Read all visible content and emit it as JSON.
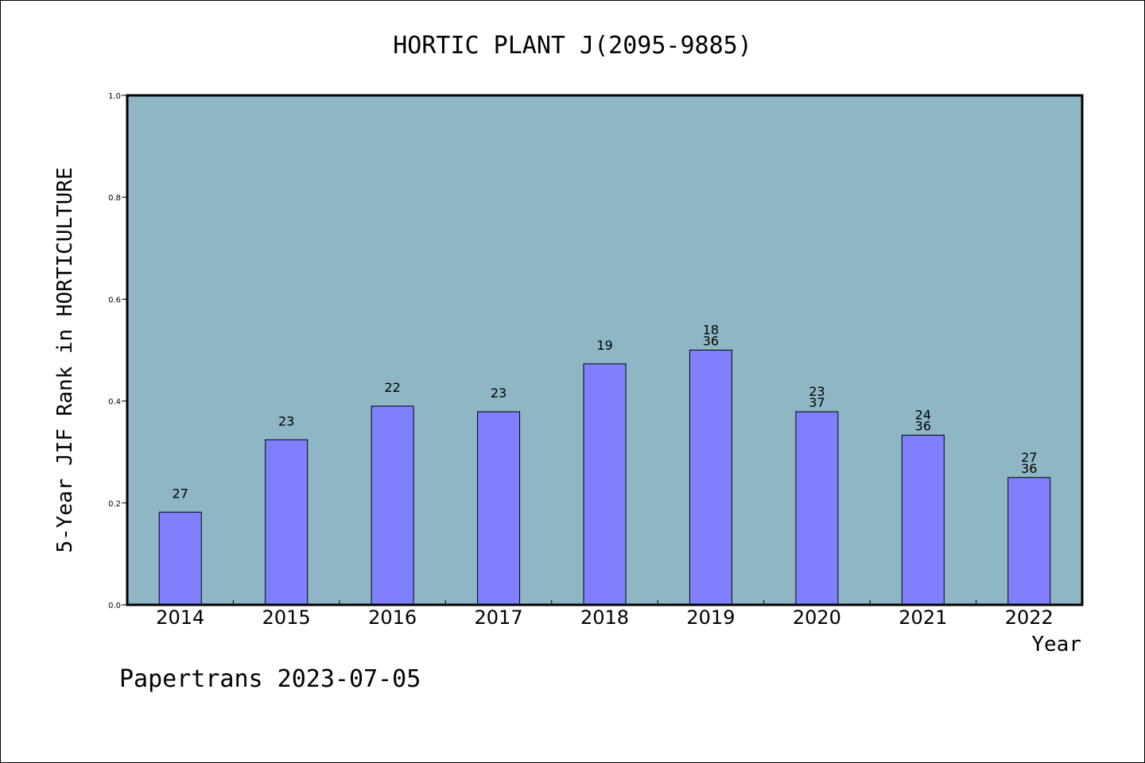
{
  "chart_data": {
    "type": "bar",
    "title": "HORTIC PLANT J(2095-9885)",
    "xlabel": "Year",
    "ylabel": "5-Year JIF Rank in HORTICULTURE",
    "ylim": [
      0,
      1.0
    ],
    "yticks": [
      "0.0",
      "0.2",
      "0.4",
      "0.6",
      "0.8",
      "1.0"
    ],
    "categories": [
      "2014",
      "2015",
      "2016",
      "2017",
      "2018",
      "2019",
      "2020",
      "2021",
      "2022"
    ],
    "values": [
      0.182,
      0.324,
      0.39,
      0.379,
      0.473,
      0.5,
      0.379,
      0.333,
      0.25
    ],
    "labels": [
      [
        "27"
      ],
      [
        "23"
      ],
      [
        "22"
      ],
      [
        "23"
      ],
      [
        "19"
      ],
      [
        "18",
        "36"
      ],
      [
        "23",
        "37"
      ],
      [
        "24",
        "36"
      ],
      [
        "27",
        "36"
      ]
    ],
    "colors": {
      "plot_bg": "#8fb6c5",
      "bar": "#8080ff"
    },
    "grid": false
  },
  "footer": "Papertrans 2023-07-05"
}
